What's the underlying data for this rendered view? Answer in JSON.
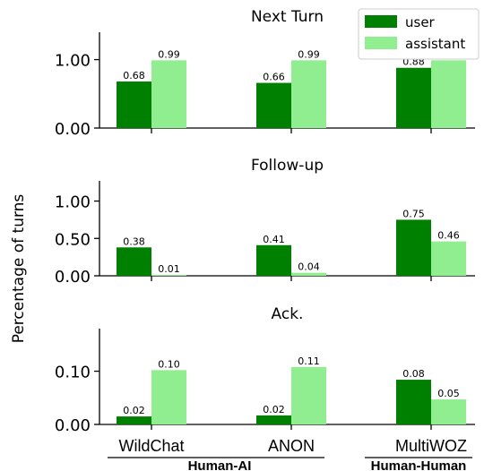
{
  "chart_data": [
    {
      "type": "bar",
      "title": "Next Turn",
      "categories": [
        "WildChat",
        "ANON",
        "MultiWOZ"
      ],
      "series": [
        {
          "name": "user",
          "values": [
            0.68,
            0.66,
            0.88
          ]
        },
        {
          "name": "assistant",
          "values": [
            0.99,
            0.99,
            0.99
          ]
        }
      ],
      "data_labels": [
        [
          "0.68",
          "0.66",
          "0.88"
        ],
        [
          "0.99",
          "0.99",
          "0.99"
        ]
      ],
      "yticks": [
        "0.00",
        "1.00"
      ],
      "ytick_values": [
        0,
        1
      ],
      "ylim": [
        0,
        1.4
      ]
    },
    {
      "type": "bar",
      "title": "Follow-up",
      "categories": [
        "WildChat",
        "ANON",
        "MultiWOZ"
      ],
      "series": [
        {
          "name": "user",
          "values": [
            0.38,
            0.41,
            0.75
          ]
        },
        {
          "name": "assistant",
          "values": [
            0.01,
            0.04,
            0.46
          ]
        }
      ],
      "data_labels": [
        [
          "0.38",
          "0.41",
          "0.75"
        ],
        [
          "0.01",
          "0.04",
          "0.46"
        ]
      ],
      "yticks": [
        "0.00",
        "0.50",
        "1.00"
      ],
      "ytick_values": [
        0,
        0.5,
        1
      ],
      "ylim": [
        0,
        1.27
      ]
    },
    {
      "type": "bar",
      "title": "Ack.",
      "categories": [
        "WildChat",
        "ANON",
        "MultiWOZ"
      ],
      "series": [
        {
          "name": "user",
          "values": [
            0.015,
            0.017,
            0.084
          ]
        },
        {
          "name": "assistant",
          "values": [
            0.102,
            0.108,
            0.047
          ]
        }
      ],
      "data_labels": [
        [
          "0.02",
          "0.02",
          "0.08"
        ],
        [
          "0.10",
          "0.11",
          "0.05"
        ]
      ],
      "yticks": [
        "0.00",
        "0.10"
      ],
      "ytick_values": [
        0,
        0.1
      ],
      "ylim": [
        0,
        0.18
      ]
    }
  ],
  "ylabel": "Percentage of turns",
  "legend": {
    "position": "top-right",
    "entries": [
      {
        "label": "user",
        "color": "#008000"
      },
      {
        "label": "assistant",
        "color": "#90ee90"
      }
    ]
  },
  "group_labels": [
    "Human-AI",
    "Human-Human"
  ],
  "colors": {
    "user": "#008000",
    "assistant": "#90ee90"
  }
}
